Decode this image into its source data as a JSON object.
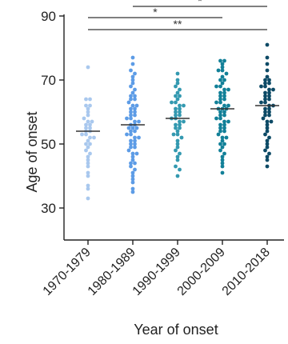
{
  "chart_data": {
    "type": "scatter",
    "title": "",
    "xlabel": "Year of onset",
    "ylabel": "Age of onset",
    "ylim": [
      20,
      90
    ],
    "yticks": [
      "30",
      "50",
      "70",
      "90"
    ],
    "ytick_values": [
      30,
      50,
      70,
      90
    ],
    "categories": [
      "1970-1979",
      "1980-1989",
      "1990-1999",
      "2000-2009",
      "2010-2018"
    ],
    "colors": [
      "#a9c8ee",
      "#5d9ce6",
      "#3399b0",
      "#128098",
      "#0d4a66"
    ],
    "series": [
      {
        "category": "1970-1979",
        "median": 54,
        "values": [
          74,
          64,
          64,
          62,
          62,
          61,
          60,
          59,
          58,
          57,
          57,
          56,
          56,
          55,
          55,
          54,
          54,
          53,
          53,
          52,
          52,
          51,
          50,
          50,
          49,
          48,
          47,
          46,
          45,
          44,
          43,
          41,
          40,
          37,
          36,
          33
        ]
      },
      {
        "category": "1980-1989",
        "median": 56,
        "values": [
          77,
          75,
          73,
          72,
          71,
          70,
          69,
          68,
          67,
          66,
          65,
          65,
          64,
          64,
          63,
          62,
          62,
          61,
          61,
          60,
          60,
          59,
          59,
          58,
          58,
          57,
          57,
          56,
          56,
          55,
          55,
          55,
          54,
          54,
          53,
          53,
          52,
          52,
          51,
          51,
          50,
          50,
          49,
          49,
          48,
          47,
          47,
          46,
          45,
          44,
          44,
          43,
          42,
          41,
          40,
          39,
          38,
          36,
          35
        ]
      },
      {
        "category": "1990-1999",
        "median": 58,
        "values": [
          72,
          70,
          69,
          68,
          67,
          66,
          65,
          65,
          64,
          63,
          63,
          62,
          62,
          61,
          61,
          60,
          60,
          59,
          59,
          58,
          58,
          57,
          57,
          56,
          56,
          55,
          55,
          54,
          53,
          53,
          52,
          51,
          50,
          49,
          48,
          47,
          46,
          45,
          43,
          42,
          40
        ]
      },
      {
        "category": "2000-2009",
        "median": 61,
        "values": [
          76,
          76,
          75,
          74,
          73,
          73,
          72,
          71,
          70,
          70,
          69,
          68,
          68,
          67,
          67,
          66,
          66,
          65,
          65,
          64,
          64,
          63,
          63,
          62,
          62,
          61,
          61,
          61,
          60,
          60,
          59,
          59,
          58,
          58,
          57,
          57,
          56,
          56,
          55,
          55,
          54,
          54,
          53,
          52,
          52,
          51,
          50,
          50,
          49,
          48,
          47,
          46,
          45,
          44,
          43,
          41
        ]
      },
      {
        "category": "2010-2018",
        "median": 62,
        "values": [
          81,
          77,
          75,
          73,
          71,
          70,
          70,
          69,
          69,
          68,
          68,
          67,
          67,
          66,
          66,
          65,
          65,
          64,
          64,
          63,
          63,
          62,
          62,
          61,
          61,
          60,
          60,
          59,
          59,
          58,
          57,
          57,
          56,
          55,
          54,
          53,
          52,
          51,
          50,
          49,
          48,
          47,
          46,
          45,
          43
        ]
      }
    ],
    "significance": [
      {
        "from": "1980-1989",
        "to": "2010-2018",
        "label": "*"
      },
      {
        "from": "1970-1979",
        "to": "2000-2009",
        "label": "*"
      },
      {
        "from": "1970-1979",
        "to": "2010-2018",
        "label": "**"
      }
    ],
    "grid": false,
    "legend": "none"
  }
}
